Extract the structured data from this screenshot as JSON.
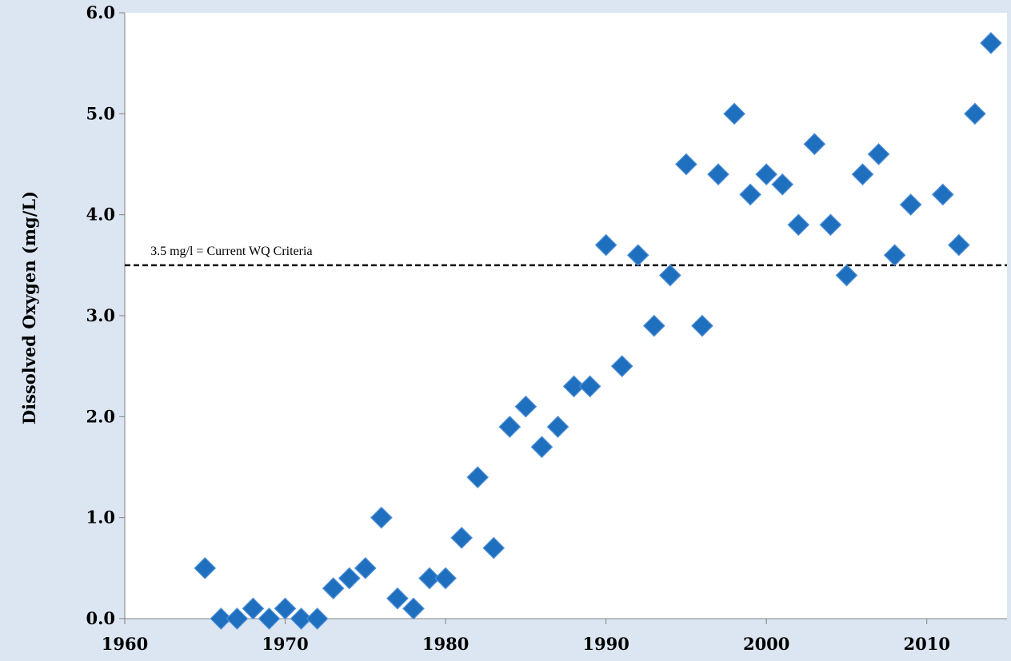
{
  "chart_data": {
    "type": "scatter",
    "title": "",
    "xlabel": "",
    "ylabel": "Dissolved  Oxygen (mg/L)",
    "xlim": [
      1960,
      2015
    ],
    "ylim": [
      0,
      6
    ],
    "x_ticks": [
      1960,
      1970,
      1980,
      1990,
      2000,
      2010
    ],
    "y_ticks": [
      "0.0",
      "1.0",
      "2.0",
      "3.0",
      "4.0",
      "5.0",
      "6.0"
    ],
    "grid": false,
    "legend": "none",
    "marker": "diamond",
    "marker_color": "#1f6fbf",
    "reference_line": {
      "y": 3.5,
      "style": "dashed",
      "label": "3.5 mg/l  = Current WQ Criteria"
    },
    "series": [
      {
        "x": [
          1965,
          1966,
          1967,
          1968,
          1969,
          1970,
          1971,
          1972,
          1973,
          1974,
          1975,
          1976,
          1977,
          1978,
          1979,
          1980,
          1981,
          1982,
          1983,
          1984,
          1985,
          1986,
          1987,
          1988,
          1989,
          1990,
          1991,
          1992,
          1993,
          1994,
          1995,
          1996,
          1997,
          1998,
          1999,
          2000,
          2001,
          2002,
          2003,
          2004,
          2005,
          2006,
          2007,
          2008,
          2009,
          2011,
          2012,
          2013,
          2014
        ],
        "y": [
          0.5,
          0.0,
          0.0,
          0.1,
          0.0,
          0.1,
          0.0,
          0.0,
          0.3,
          0.4,
          0.5,
          1.0,
          0.2,
          0.1,
          0.4,
          0.4,
          0.8,
          1.4,
          0.7,
          1.9,
          2.1,
          1.7,
          1.9,
          2.3,
          2.3,
          3.7,
          2.5,
          3.6,
          2.9,
          3.4,
          4.5,
          2.9,
          4.4,
          5.0,
          4.2,
          4.4,
          4.3,
          3.9,
          4.7,
          3.9,
          3.4,
          4.4,
          4.6,
          3.6,
          4.1,
          4.2,
          3.7,
          5.0,
          5.7
        ]
      }
    ]
  }
}
